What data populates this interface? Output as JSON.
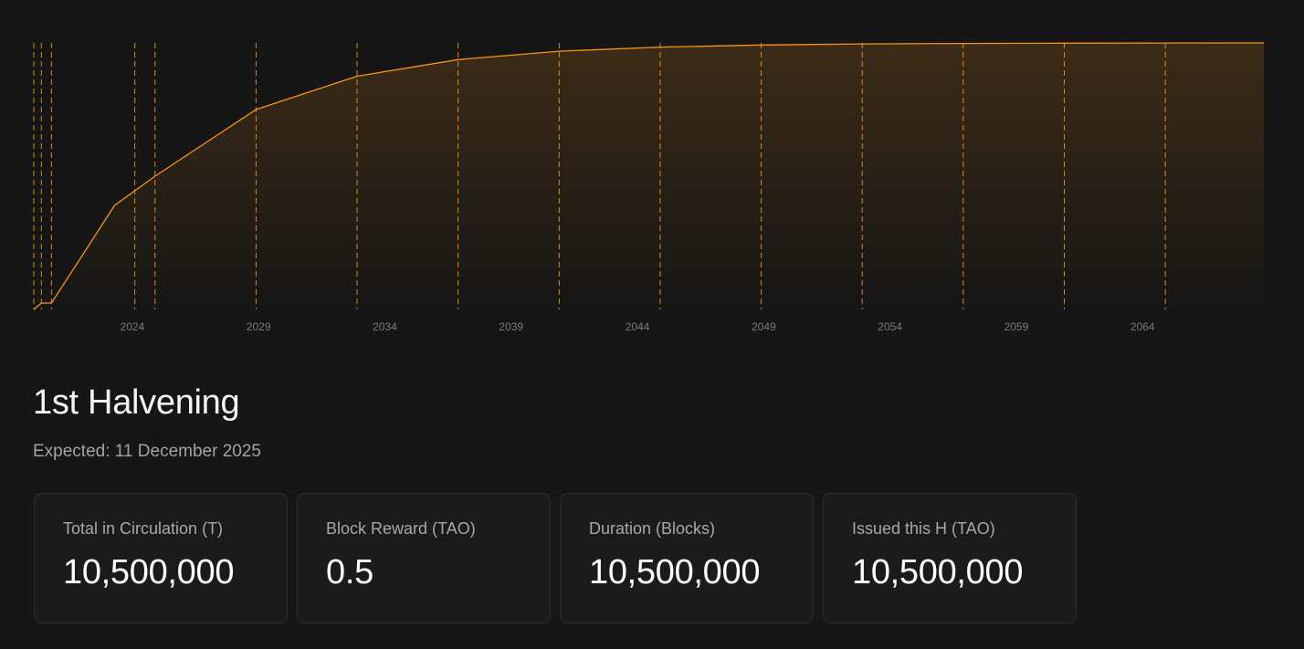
{
  "chart_data": {
    "type": "area",
    "x_ticks": [
      "2024",
      "2029",
      "2034",
      "2039",
      "2044",
      "2049",
      "2054",
      "2059",
      "2064"
    ],
    "x_range": [
      2020.1,
      2068.8
    ],
    "y_range": [
      0,
      21000000
    ],
    "series": [
      {
        "x": [
          2020.1,
          2020.4,
          2020.8,
          2023.3,
          2024.9,
          2028.9,
          2032.9,
          2036.9,
          2040.9,
          2044.9,
          2048.9,
          2052.9,
          2056.9,
          2060.9,
          2064.9,
          2068.8
        ],
        "y": [
          0,
          500000,
          500000,
          8200000,
          10500000,
          15750000,
          18375000,
          19687500,
          20343750,
          20671875,
          20835938,
          20917969,
          20958984,
          20979492,
          20989746,
          21000000
        ]
      }
    ],
    "halvenings": [
      2020.1,
      2020.4,
      2020.8,
      2024.1,
      2024.9,
      2028.9,
      2032.9,
      2036.9,
      2040.9,
      2044.9,
      2048.9,
      2052.9,
      2056.9,
      2060.9,
      2064.9
    ],
    "line_color": "#f7931a",
    "grid": false
  },
  "halvening": {
    "title": "1st Halvening",
    "expected": "Expected: 11 December 2025"
  },
  "stats": [
    {
      "label": "Total in Circulation (T)",
      "value": "10,500,000"
    },
    {
      "label": "Block Reward (TAO)",
      "value": "0.5"
    },
    {
      "label": "Duration (Blocks)",
      "value": "10,500,000"
    },
    {
      "label": "Issued this H (TAO)",
      "value": "10,500,000"
    }
  ]
}
